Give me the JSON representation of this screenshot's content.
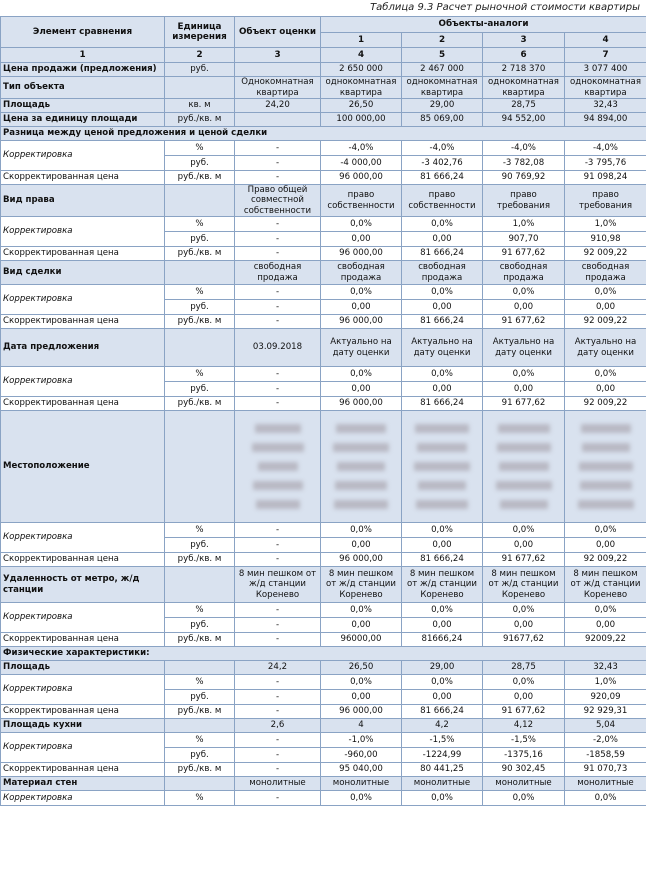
{
  "caption": "Таблица 9.3 Расчет рыночной стоимости квартиры",
  "headers": {
    "element": "Элемент сравнения",
    "unit": "Единица измерения",
    "object": "Объект оценки",
    "analogs": "Объекты-аналоги",
    "analog_nums": [
      "1",
      "2",
      "3",
      "4"
    ],
    "col_nums": [
      "1",
      "2",
      "3",
      "4",
      "5",
      "6",
      "7"
    ]
  },
  "rows": [
    {
      "type": "sec",
      "name": "Цена продажи (предложения)",
      "unit": "руб.",
      "obj": "",
      "a": [
        "2 650 000",
        "2 467 000",
        "2 718 370",
        "3 077 400"
      ]
    },
    {
      "type": "sec",
      "name": "Тип объекта",
      "unit": "",
      "obj": "Однокомнатная квартира",
      "a": [
        "однокомнатная квартира",
        "однокомнатная квартира",
        "однокомнатная квартира",
        "однокомнатная квартира"
      ],
      "h": 22
    },
    {
      "type": "sec",
      "name": "Площадь",
      "unit": "кв. м",
      "obj": "24,20",
      "a": [
        "26,50",
        "29,00",
        "28,75",
        "32,43"
      ]
    },
    {
      "type": "sec",
      "name": "Цена за единицу площади",
      "unit": "руб./кв. м",
      "obj": "",
      "a": [
        "100 000,00",
        "85 069,00",
        "94 552,00",
        "94 894,00"
      ]
    },
    {
      "type": "title",
      "name": "Разница между ценой предложения  и ценой сделки"
    },
    {
      "type": "corr",
      "name": "Корректировка",
      "u1": "%",
      "u2": "руб.",
      "o1": "-",
      "o2": "-",
      "a1": [
        "-4,0%",
        "-4,0%",
        "-4,0%",
        "-4,0%"
      ],
      "a2": [
        "-4 000,00",
        "-3 402,76",
        "-3 782,08",
        "-3 795,76"
      ]
    },
    {
      "type": "plain",
      "name": "Скорректированная цена",
      "unit": "руб./кв. м",
      "obj": "-",
      "a": [
        "96 000,00",
        "81 666,24",
        "90 769,92",
        "91 098,24"
      ]
    },
    {
      "type": "sec",
      "name": "Вид права",
      "unit": "",
      "obj": "Право общей совместной собственности",
      "a": [
        "право собственности",
        "право собственности",
        "право требования",
        "право требования"
      ],
      "h": 32
    },
    {
      "type": "corr",
      "name": "Корректировка",
      "u1": "%",
      "u2": "руб.",
      "o1": "-",
      "o2": "-",
      "a1": [
        "0,0%",
        "0,0%",
        "1,0%",
        "1,0%"
      ],
      "a2": [
        "0,00",
        "0,00",
        "907,70",
        "910,98"
      ]
    },
    {
      "type": "plain",
      "name": "Скорректированная цена",
      "unit": "руб./кв. м",
      "obj": "-",
      "a": [
        "96 000,00",
        "81 666,24",
        "91 677,62",
        "92 009,22"
      ]
    },
    {
      "type": "sec",
      "name": "Вид сделки",
      "unit": "",
      "obj": "свободная продажа",
      "a": [
        "свободная продажа",
        "свободная продажа",
        "свободная продажа",
        "свободная продажа"
      ],
      "h": 24
    },
    {
      "type": "corr",
      "name": "Корректировка",
      "u1": "%",
      "u2": "руб.",
      "o1": "-",
      "o2": "-",
      "a1": [
        "0,0%",
        "0,0%",
        "0,0%",
        "0,0%"
      ],
      "a2": [
        "0,00",
        "0,00",
        "0,00",
        "0,00"
      ]
    },
    {
      "type": "plain",
      "name": "Скорректированная цена",
      "unit": "руб./кв. м",
      "obj": "-",
      "a": [
        "96 000,00",
        "81 666,24",
        "91 677,62",
        "92 009,22"
      ]
    },
    {
      "type": "sec",
      "name": "Дата предложения",
      "unit": "",
      "obj": "03.09.2018",
      "a": [
        "Актуально на дату оценки",
        "Актуально на дату оценки",
        "Актуально на дату оценки",
        "Актуально на дату оценки"
      ],
      "h": 38
    },
    {
      "type": "corr",
      "name": "Корректировка",
      "u1": "%",
      "u2": "руб.",
      "o1": "-",
      "o2": "-",
      "a1": [
        "0,0%",
        "0,0%",
        "0,0%",
        "0,0%"
      ],
      "a2": [
        "0,00",
        "0,00",
        "0,00",
        "0,00"
      ]
    },
    {
      "type": "plain",
      "name": "Скорректированная цена",
      "unit": "руб./кв. м",
      "obj": "-",
      "a": [
        "96 000,00",
        "81 666,24",
        "91 677,62",
        "92 009,22"
      ]
    },
    {
      "type": "blur",
      "name": "Местоположение",
      "h": 112
    },
    {
      "type": "corr",
      "name": "Корректировка",
      "u1": "%",
      "u2": "руб.",
      "o1": "-",
      "o2": "-",
      "a1": [
        "0,0%",
        "0,0%",
        "0,0%",
        "0,0%"
      ],
      "a2": [
        "0,00",
        "0,00",
        "0,00",
        "0,00"
      ]
    },
    {
      "type": "plain",
      "name": "Скорректированная цена",
      "unit": "руб./кв. м",
      "obj": "-",
      "a": [
        "96 000,00",
        "81 666,24",
        "91 677,62",
        "92 009,22"
      ]
    },
    {
      "type": "sec",
      "name": "Удаленность от метро, ж/д станции",
      "unit": "",
      "obj": "8 мин пешком от ж/д станции Коренево",
      "a": [
        "8 мин пешком от ж/д станции Коренево",
        "8 мин пешком от ж/д станции Коренево",
        "8 мин пешком от ж/д станции Коренево",
        "8 мин пешком от ж/д станции Коренево"
      ],
      "h": 36
    },
    {
      "type": "corr",
      "name": "Корректировка",
      "u1": "%",
      "u2": "руб.",
      "o1": "-",
      "o2": "-",
      "a1": [
        "0,0%",
        "0,0%",
        "0,0%",
        "0,0%"
      ],
      "a2": [
        "0,00",
        "0,00",
        "0,00",
        "0,00"
      ]
    },
    {
      "type": "plain",
      "name": "Скорректированная цена",
      "unit": "руб./кв. м",
      "obj": "-",
      "a": [
        "96000,00",
        "81666,24",
        "91677,62",
        "92009,22"
      ]
    },
    {
      "type": "title",
      "name": "Физические характеристики:"
    },
    {
      "type": "sec",
      "name": "Площадь",
      "unit": "",
      "obj": "24,2",
      "a": [
        "26,50",
        "29,00",
        "28,75",
        "32,43"
      ]
    },
    {
      "type": "corr",
      "name": "Корректировка",
      "u1": "%",
      "u2": "руб.",
      "o1": "-",
      "o2": "-",
      "a1": [
        "0,0%",
        "0,0%",
        "0,0%",
        "1,0%"
      ],
      "a2": [
        "0,00",
        "0,00",
        "0,00",
        "920,09"
      ]
    },
    {
      "type": "plain",
      "name": "Скорректированная цена",
      "unit": "руб./кв. м",
      "obj": "-",
      "a": [
        "96 000,00",
        "81 666,24",
        "91 677,62",
        "92 929,31"
      ]
    },
    {
      "type": "sec",
      "name": "Площадь кухни",
      "unit": "",
      "obj": "2,6",
      "a": [
        "4",
        "4,2",
        "4,12",
        "5,04"
      ]
    },
    {
      "type": "corr",
      "name": "Корректировка",
      "u1": "%",
      "u2": "руб.",
      "o1": "-",
      "o2": "-",
      "a1": [
        "-1,0%",
        "-1,5%",
        "-1,5%",
        "-2,0%"
      ],
      "a2": [
        "-960,00",
        "-1224,99",
        "-1375,16",
        "-1858,59"
      ]
    },
    {
      "type": "plain",
      "name": "Скорректированная цена",
      "unit": "руб./кв. м",
      "obj": "-",
      "a": [
        "95 040,00",
        "80 441,25",
        "90 302,45",
        "91 070,73"
      ]
    },
    {
      "type": "sec",
      "name": "Материал стен",
      "unit": "",
      "obj": "монолитные",
      "a": [
        "монолитные",
        "монолитные",
        "монолитные",
        "монолитные"
      ]
    },
    {
      "type": "corr1",
      "name": "Корректировка",
      "u1": "%",
      "o1": "-",
      "a1": [
        "0,0%",
        "0,0%",
        "0,0%",
        "0,0%"
      ]
    }
  ]
}
